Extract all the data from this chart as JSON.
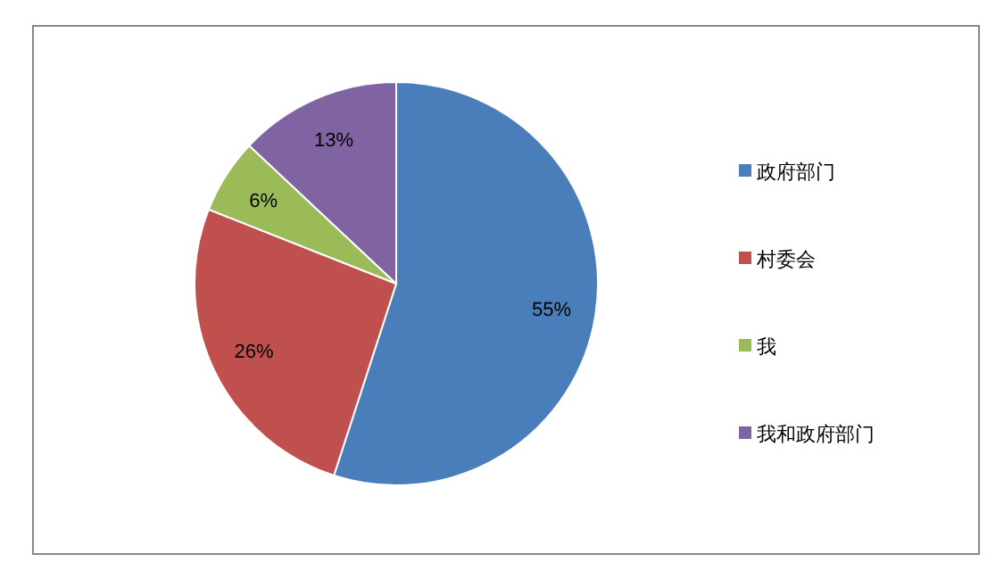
{
  "chart_data": {
    "type": "pie",
    "categories": [
      "政府部门",
      "村委会",
      "我",
      "我和政府部门"
    ],
    "values": [
      55,
      26,
      6,
      13
    ],
    "colors": [
      "#4a7ebb",
      "#c0504d",
      "#9bbb59",
      "#8064a2"
    ],
    "value_labels": [
      "55%",
      "26%",
      "6%",
      "13%"
    ],
    "legend": "right"
  }
}
